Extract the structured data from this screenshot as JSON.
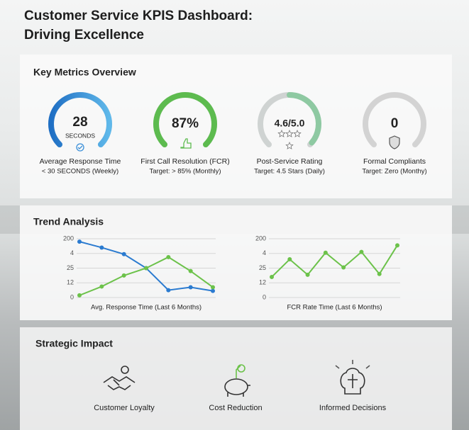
{
  "header": {
    "title": "Customer Service KPIS Dashboard: Driving Excellence"
  },
  "metrics": {
    "title": "Key Metrics Overview",
    "items": [
      {
        "value": "28",
        "unit": "SECONDS",
        "label": "Average Response Time",
        "target": "< 30 SECONDS (Weekly)"
      },
      {
        "value": "87%",
        "label": "First Call Resolution (FCR)",
        "target": "Target: > 85% (Monthly)"
      },
      {
        "value": "4.6/5.0",
        "label": "Post-Service Rating",
        "target": "Target: 4.5 Stars (Daily)"
      },
      {
        "value": "0",
        "label": "Formal Compliants",
        "target": "Target: Zero (Monthy)"
      }
    ]
  },
  "trend": {
    "title": "Trend Analysis"
  },
  "chart_data": [
    {
      "type": "line",
      "xlabel": "Avg. Response Time (Last 6 Months)",
      "categories": [
        null,
        null,
        null,
        null,
        null,
        null,
        null
      ],
      "series": [
        {
          "color": "#2b7bd0",
          "values": [
            3.8,
            3.4,
            2.95,
            2.0,
            0.5,
            0.7,
            0.45
          ]
        },
        {
          "color": "#6cc24a",
          "values": [
            0.15,
            0.75,
            1.5,
            2.0,
            2.75,
            1.8,
            0.7
          ]
        }
      ],
      "ylim": [
        0,
        4
      ],
      "yticks": [
        {
          "value": 0,
          "label": "0"
        },
        {
          "value": 1,
          "label": "12"
        },
        {
          "value": 2,
          "label": "25"
        },
        {
          "value": 3,
          "label": "4"
        },
        {
          "value": 4,
          "label": "200"
        }
      ],
      "grid": true
    },
    {
      "type": "line",
      "xlabel": "FCR Rate Time (Last 6 Months)",
      "categories": [
        null,
        null,
        null,
        null,
        null,
        null,
        null,
        null
      ],
      "series": [
        {
          "color": "#6cc24a",
          "values": [
            1.4,
            2.6,
            1.55,
            3.05,
            2.05,
            3.1,
            1.6,
            3.55
          ]
        }
      ],
      "ylim": [
        0,
        4
      ],
      "yticks": [
        {
          "value": 0,
          "label": "0"
        },
        {
          "value": 1,
          "label": "12"
        },
        {
          "value": 2,
          "label": "25"
        },
        {
          "value": 3,
          "label": "4"
        },
        {
          "value": 4,
          "label": "200"
        }
      ],
      "grid": true
    }
  ],
  "impact": {
    "title": "Strategic Impact",
    "items": [
      "Customer Loyalty",
      "Cost Reduction",
      "Informed Decisions"
    ]
  }
}
